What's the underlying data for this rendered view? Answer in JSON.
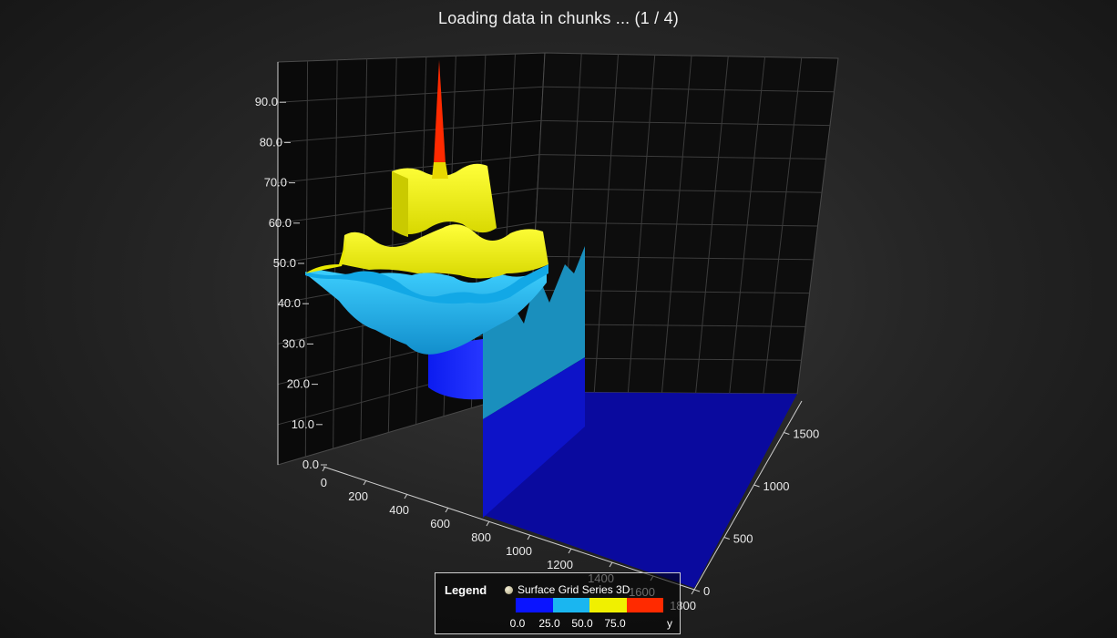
{
  "title": "Loading data in chunks ... (1 / 4)",
  "chart_data": {
    "type": "surface3d",
    "title": "Loading data in chunks ... (1 / 4)",
    "axes": {
      "x": {
        "range": [
          0,
          1800
        ],
        "ticks": [
          "0",
          "200",
          "400",
          "600",
          "800",
          "1000",
          "1200",
          "1400",
          "1600",
          "1800"
        ]
      },
      "y": {
        "range": [
          0,
          100
        ],
        "ticks": [
          "0.0",
          "10.0",
          "20.0",
          "30.0",
          "40.0",
          "50.0",
          "60.0",
          "70.0",
          "80.0",
          "90.0"
        ]
      },
      "z": {
        "range": [
          0,
          1800
        ],
        "ticks": [
          "0",
          "500",
          "1000",
          "1500"
        ]
      }
    },
    "grid": true,
    "series": [
      {
        "name": "Surface Grid Series 3D",
        "loaded_x_range": [
          0,
          1000
        ],
        "loaded_z_range": [
          0,
          1800
        ],
        "peak_y": 100,
        "unloaded_value": 0,
        "edge_wall_y_range": [
          15,
          57
        ]
      }
    ],
    "palette": [
      {
        "from": 0.0,
        "to": 25.0,
        "color": "#0a14ff"
      },
      {
        "from": 25.0,
        "to": 50.0,
        "color": "#1ab6f0"
      },
      {
        "from": 50.0,
        "to": 75.0,
        "color": "#f0f000"
      },
      {
        "from": 75.0,
        "to": 100.0,
        "color": "#ff2a00"
      }
    ],
    "legend": {
      "title": "Legend",
      "series_name": "Surface Grid Series 3D",
      "ticks": [
        "0.0",
        "25.0",
        "50.0",
        "75.0"
      ],
      "unit": "y",
      "placement": "bottom-center"
    }
  }
}
